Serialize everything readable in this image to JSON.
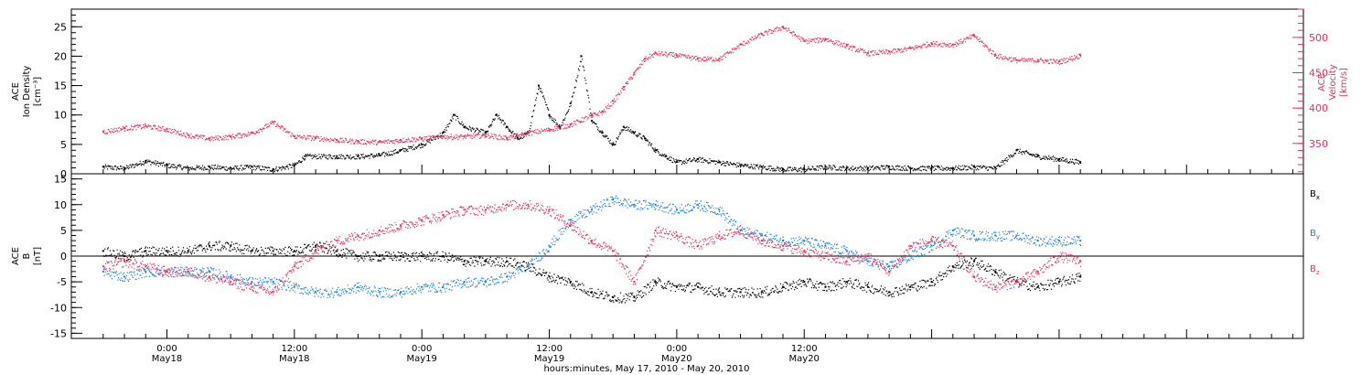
{
  "chart_data": [
    {
      "type": "scatter",
      "panel": "top",
      "left_axis": {
        "label_lines": [
          "ACE",
          "Ion Density",
          "[cm⁻³]"
        ],
        "ylim": [
          0,
          28
        ],
        "ticks": [
          0,
          5,
          10,
          15,
          20,
          25
        ]
      },
      "right_axis": {
        "label_lines": [
          "ACE",
          "Velocity",
          "[km/s]"
        ],
        "ylim": [
          307,
          540
        ],
        "ticks": [
          350,
          400,
          450,
          500
        ]
      },
      "series": [
        {
          "role": "density",
          "axis": "left",
          "color": "#000000",
          "points": [
            [
              -6,
              1.2
            ],
            [
              -4,
              1.0
            ],
            [
              -2,
              2.2
            ],
            [
              0,
              1.5
            ],
            [
              2,
              1.0
            ],
            [
              4,
              1.2
            ],
            [
              6,
              1.0
            ],
            [
              8,
              1.2
            ],
            [
              10,
              0.8
            ],
            [
              12,
              1.5
            ],
            [
              13,
              3.0
            ],
            [
              16,
              3.0
            ],
            [
              18,
              3.0
            ],
            [
              20,
              3.2
            ],
            [
              22,
              4.0
            ],
            [
              24,
              5.0
            ],
            [
              26,
              7.0
            ],
            [
              27,
              10.0
            ],
            [
              28,
              8.0
            ],
            [
              30,
              7.0
            ],
            [
              31,
              10.0
            ],
            [
              32,
              8.0
            ],
            [
              33,
              6.0
            ],
            [
              34,
              7.0
            ],
            [
              35,
              15.0
            ],
            [
              36,
              10.0
            ],
            [
              37,
              8.0
            ],
            [
              38,
              12.0
            ],
            [
              39,
              20.0
            ],
            [
              40,
              9.0
            ],
            [
              41,
              7.0
            ],
            [
              42,
              5.0
            ],
            [
              43,
              8.0
            ],
            [
              44,
              7.0
            ],
            [
              45,
              6.0
            ],
            [
              46,
              4.0
            ],
            [
              47,
              3.0
            ],
            [
              48,
              2.0
            ],
            [
              50,
              2.5
            ],
            [
              52,
              2.0
            ],
            [
              54,
              1.5
            ],
            [
              56,
              1.2
            ],
            [
              58,
              0.8
            ],
            [
              60,
              0.8
            ],
            [
              62,
              1.2
            ],
            [
              64,
              1.0
            ],
            [
              66,
              1.0
            ],
            [
              68,
              1.2
            ],
            [
              70,
              1.0
            ],
            [
              72,
              1.0
            ],
            [
              74,
              1.0
            ],
            [
              76,
              1.2
            ],
            [
              78,
              1.0
            ],
            [
              80,
              4.0
            ],
            [
              82,
              3.0
            ],
            [
              84,
              2.5
            ],
            [
              86,
              2.0
            ]
          ]
        },
        {
          "role": "velocity",
          "axis": "right",
          "color": "#e8305a",
          "points": [
            [
              -6,
              367
            ],
            [
              -4,
              372
            ],
            [
              -2,
              375
            ],
            [
              0,
              370
            ],
            [
              2,
              362
            ],
            [
              4,
              357
            ],
            [
              6,
              360
            ],
            [
              8,
              365
            ],
            [
              10,
              380
            ],
            [
              12,
              360
            ],
            [
              14,
              358
            ],
            [
              16,
              355
            ],
            [
              18,
              353
            ],
            [
              20,
              352
            ],
            [
              22,
              355
            ],
            [
              24,
              357
            ],
            [
              26,
              360
            ],
            [
              28,
              360
            ],
            [
              30,
              362
            ],
            [
              32,
              358
            ],
            [
              34,
              365
            ],
            [
              36,
              370
            ],
            [
              38,
              377
            ],
            [
              40,
              390
            ],
            [
              41,
              395
            ],
            [
              42,
              410
            ],
            [
              43,
              430
            ],
            [
              44,
              450
            ],
            [
              45,
              470
            ],
            [
              46,
              478
            ],
            [
              48,
              475
            ],
            [
              50,
              470
            ],
            [
              52,
              470
            ],
            [
              54,
              490
            ],
            [
              56,
              505
            ],
            [
              58,
              515
            ],
            [
              60,
              495
            ],
            [
              62,
              498
            ],
            [
              64,
              488
            ],
            [
              66,
              478
            ],
            [
              68,
              480
            ],
            [
              70,
              485
            ],
            [
              72,
              492
            ],
            [
              74,
              490
            ],
            [
              76,
              503
            ],
            [
              78,
              475
            ],
            [
              80,
              468
            ],
            [
              82,
              468
            ],
            [
              84,
              466
            ],
            [
              86,
              475
            ]
          ]
        }
      ]
    },
    {
      "type": "scatter",
      "panel": "bottom",
      "left_axis": {
        "label_lines": [
          "ACE",
          "B",
          "[nT]"
        ],
        "ylim": [
          -16,
          16
        ],
        "ticks": [
          -15,
          -10,
          -5,
          0,
          5,
          10,
          15
        ]
      },
      "legend": {
        "placement": "right",
        "entries": [
          {
            "base": "B",
            "sub": "x",
            "color": "#000000"
          },
          {
            "base": "B",
            "sub": "y",
            "color": "#1a82e0"
          },
          {
            "base": "B",
            "sub": "z",
            "color": "#e8305a"
          }
        ]
      },
      "series": [
        {
          "name": "Bx",
          "color": "#000000",
          "points": [
            [
              -6,
              1
            ],
            [
              -4,
              0
            ],
            [
              -2,
              1
            ],
            [
              0,
              1
            ],
            [
              2,
              1
            ],
            [
              4,
              2
            ],
            [
              6,
              2
            ],
            [
              8,
              1
            ],
            [
              10,
              1
            ],
            [
              12,
              1
            ],
            [
              14,
              2
            ],
            [
              16,
              1
            ],
            [
              18,
              0
            ],
            [
              20,
              0
            ],
            [
              22,
              0
            ],
            [
              24,
              0
            ],
            [
              26,
              0
            ],
            [
              28,
              -1
            ],
            [
              30,
              -1
            ],
            [
              32,
              -1
            ],
            [
              34,
              -2
            ],
            [
              36,
              -4
            ],
            [
              38,
              -5
            ],
            [
              40,
              -7
            ],
            [
              42,
              -8
            ],
            [
              44,
              -8
            ],
            [
              46,
              -5
            ],
            [
              48,
              -6
            ],
            [
              50,
              -6
            ],
            [
              52,
              -7
            ],
            [
              54,
              -7
            ],
            [
              56,
              -7
            ],
            [
              58,
              -6
            ],
            [
              60,
              -5
            ],
            [
              62,
              -6
            ],
            [
              64,
              -5
            ],
            [
              66,
              -6
            ],
            [
              68,
              -7
            ],
            [
              70,
              -6
            ],
            [
              72,
              -5
            ],
            [
              74,
              -2
            ],
            [
              76,
              -1
            ],
            [
              78,
              -3
            ],
            [
              80,
              -5
            ],
            [
              82,
              -6
            ],
            [
              84,
              -5
            ],
            [
              86,
              -4
            ]
          ]
        },
        {
          "name": "By",
          "color": "#1a82e0",
          "points": [
            [
              -6,
              -3
            ],
            [
              -4,
              -4
            ],
            [
              -2,
              -3
            ],
            [
              0,
              -3
            ],
            [
              2,
              -3
            ],
            [
              4,
              -3
            ],
            [
              6,
              -4
            ],
            [
              8,
              -5
            ],
            [
              10,
              -5
            ],
            [
              12,
              -6
            ],
            [
              14,
              -7
            ],
            [
              16,
              -7
            ],
            [
              18,
              -6
            ],
            [
              20,
              -7
            ],
            [
              22,
              -7
            ],
            [
              24,
              -6
            ],
            [
              26,
              -6
            ],
            [
              28,
              -5
            ],
            [
              30,
              -5
            ],
            [
              32,
              -4
            ],
            [
              34,
              -2
            ],
            [
              36,
              2
            ],
            [
              38,
              7
            ],
            [
              40,
              9
            ],
            [
              42,
              11
            ],
            [
              44,
              10
            ],
            [
              46,
              10
            ],
            [
              48,
              9
            ],
            [
              50,
              10
            ],
            [
              52,
              9
            ],
            [
              54,
              5
            ],
            [
              56,
              4
            ],
            [
              58,
              3
            ],
            [
              60,
              3
            ],
            [
              62,
              2
            ],
            [
              64,
              1
            ],
            [
              66,
              -1
            ],
            [
              68,
              -2
            ],
            [
              70,
              0
            ],
            [
              72,
              2
            ],
            [
              74,
              5
            ],
            [
              76,
              4
            ],
            [
              78,
              4
            ],
            [
              80,
              4
            ],
            [
              82,
              3
            ],
            [
              84,
              3
            ],
            [
              86,
              3
            ]
          ]
        },
        {
          "name": "Bz",
          "color": "#e8305a",
          "points": [
            [
              -6,
              -2
            ],
            [
              -4,
              -1
            ],
            [
              -2,
              -2
            ],
            [
              0,
              -3
            ],
            [
              2,
              -3
            ],
            [
              4,
              -4
            ],
            [
              6,
              -5
            ],
            [
              8,
              -6
            ],
            [
              10,
              -7
            ],
            [
              12,
              -2
            ],
            [
              14,
              1
            ],
            [
              16,
              3
            ],
            [
              18,
              4
            ],
            [
              20,
              5
            ],
            [
              22,
              6
            ],
            [
              24,
              7
            ],
            [
              26,
              8
            ],
            [
              28,
              9
            ],
            [
              30,
              9
            ],
            [
              32,
              10
            ],
            [
              34,
              10
            ],
            [
              36,
              9
            ],
            [
              38,
              6
            ],
            [
              40,
              3
            ],
            [
              42,
              1
            ],
            [
              44,
              -5
            ],
            [
              46,
              5
            ],
            [
              48,
              4
            ],
            [
              50,
              2
            ],
            [
              52,
              4
            ],
            [
              54,
              5
            ],
            [
              56,
              3
            ],
            [
              58,
              2
            ],
            [
              60,
              1
            ],
            [
              62,
              0
            ],
            [
              64,
              -1
            ],
            [
              66,
              0
            ],
            [
              68,
              -3
            ],
            [
              70,
              2
            ],
            [
              72,
              3
            ],
            [
              74,
              2
            ],
            [
              76,
              -4
            ],
            [
              78,
              -6
            ],
            [
              80,
              -5
            ],
            [
              82,
              -3
            ],
            [
              84,
              0
            ],
            [
              86,
              -1
            ]
          ]
        }
      ]
    }
  ],
  "x_axis": {
    "range_hours": [
      -9,
      107
    ],
    "tick_labels": [
      {
        "hour": 0,
        "line1": "0:00",
        "line2": "May18"
      },
      {
        "hour": 12,
        "line1": "12:00",
        "line2": "May18"
      },
      {
        "hour": 24,
        "line1": "0:00",
        "line2": "May19"
      },
      {
        "hour": 36,
        "line1": "12:00",
        "line2": "May19"
      },
      {
        "hour": 48,
        "line1": "0:00",
        "line2": "May20"
      },
      {
        "hour": 60,
        "line1": "12:00",
        "line2": "May20"
      }
    ],
    "title": "hours:minutes, May 17, 2010 - May 20, 2010"
  }
}
